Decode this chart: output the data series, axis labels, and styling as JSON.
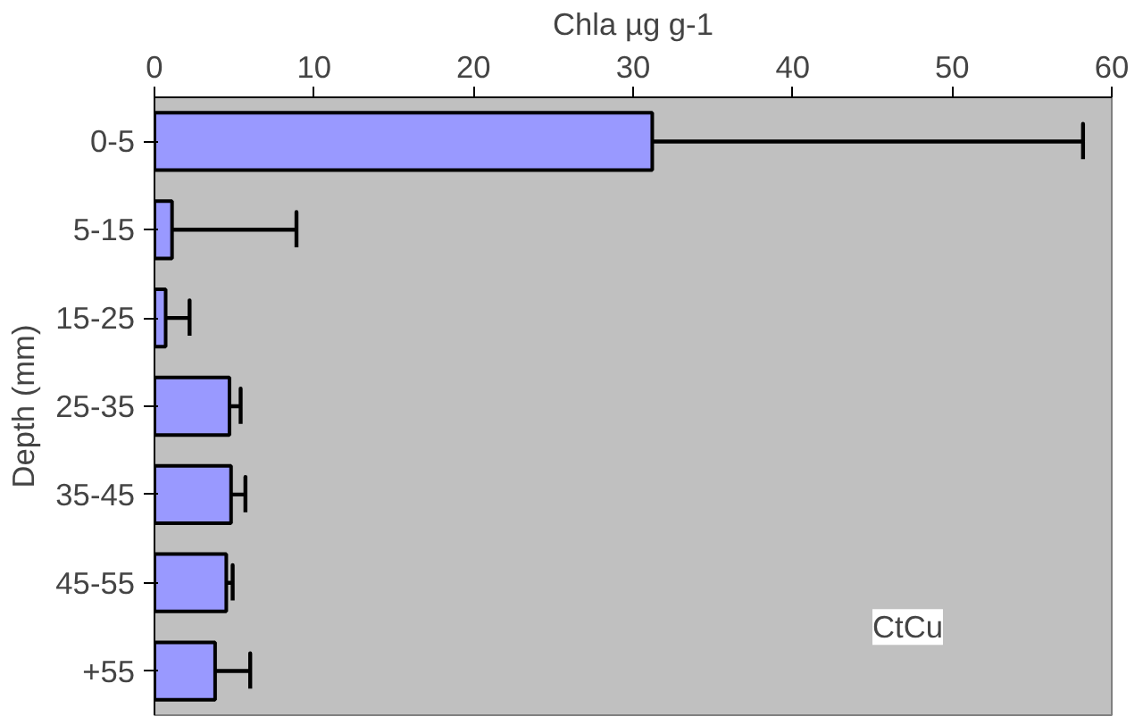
{
  "chart_data": {
    "type": "bar",
    "orientation": "horizontal",
    "xlabel": "Chla µg g-1",
    "ylabel": "Depth (mm)",
    "categories": [
      "0-5",
      "5-15",
      "15-25",
      "25-35",
      "35-45",
      "45-55",
      "+55"
    ],
    "values": [
      31.2,
      1.1,
      0.7,
      4.7,
      4.8,
      4.5,
      3.8
    ],
    "errors": [
      [
        31.2,
        58.2
      ],
      [
        1.1,
        8.9
      ],
      [
        0.7,
        2.2
      ],
      [
        4.7,
        5.4
      ],
      [
        4.8,
        5.7
      ],
      [
        4.5,
        4.9
      ],
      [
        3.8,
        6.0
      ]
    ],
    "color": "#9999ff",
    "xlim": [
      0,
      60
    ],
    "xticks": [
      0,
      10,
      20,
      30,
      40,
      50,
      60
    ],
    "grid": false,
    "annotations": [
      "CtCu"
    ]
  }
}
